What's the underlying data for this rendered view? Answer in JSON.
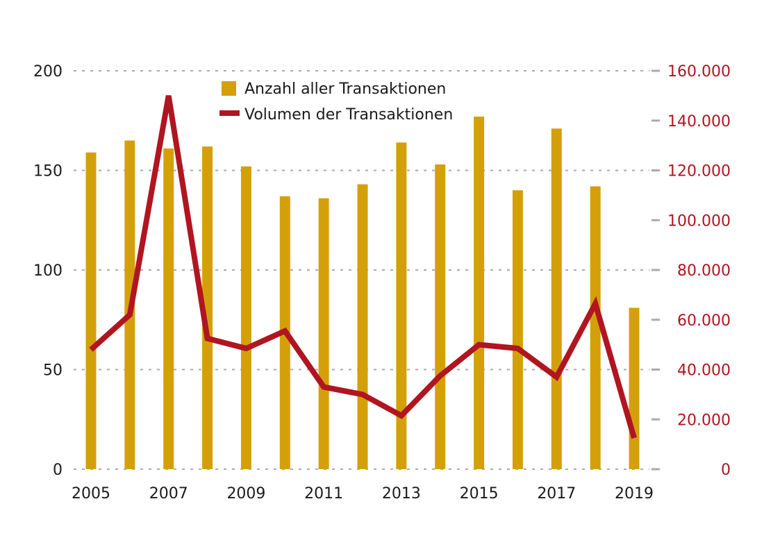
{
  "chart_data": {
    "type": "bar+line",
    "title": "",
    "categories": [
      "2005",
      "2006",
      "2007",
      "2008",
      "2009",
      "2010",
      "2011",
      "2012",
      "2013",
      "2014",
      "2015",
      "2016",
      "2017",
      "2018",
      "2019"
    ],
    "x_tick_labels": [
      "2005",
      "2007",
      "2009",
      "2011",
      "2013",
      "2015",
      "2017",
      "2019"
    ],
    "series": [
      {
        "name": "Anzahl aller Transaktionen",
        "type": "bar",
        "axis": "left",
        "color": "#D4A00A",
        "values": [
          159,
          165,
          161,
          162,
          152,
          137,
          136,
          143,
          164,
          153,
          177,
          140,
          171,
          142,
          81
        ]
      },
      {
        "name": "Volumen der Transaktionen",
        "type": "line",
        "axis": "right",
        "color": "#B01520",
        "values": [
          48000,
          62000,
          150000,
          52500,
          48500,
          55500,
          33000,
          30000,
          21500,
          37500,
          50000,
          48500,
          37000,
          66500,
          12500
        ]
      }
    ],
    "y_left": {
      "ylim": [
        0,
        200
      ],
      "ticks": [
        0,
        50,
        100,
        150,
        200
      ],
      "tick_labels": [
        "0",
        "50",
        "100",
        "150",
        "200"
      ]
    },
    "y_right": {
      "ylim": [
        0,
        160000
      ],
      "ticks": [
        0,
        20000,
        40000,
        60000,
        80000,
        100000,
        120000,
        140000,
        160000
      ],
      "tick_labels": [
        "0",
        "20.000",
        "40.000",
        "60.000",
        "80.000",
        "100.000",
        "120.000",
        "140.000",
        "160.000"
      ],
      "color": "#B01520"
    },
    "grid": true,
    "legend_placement": "top-center"
  }
}
